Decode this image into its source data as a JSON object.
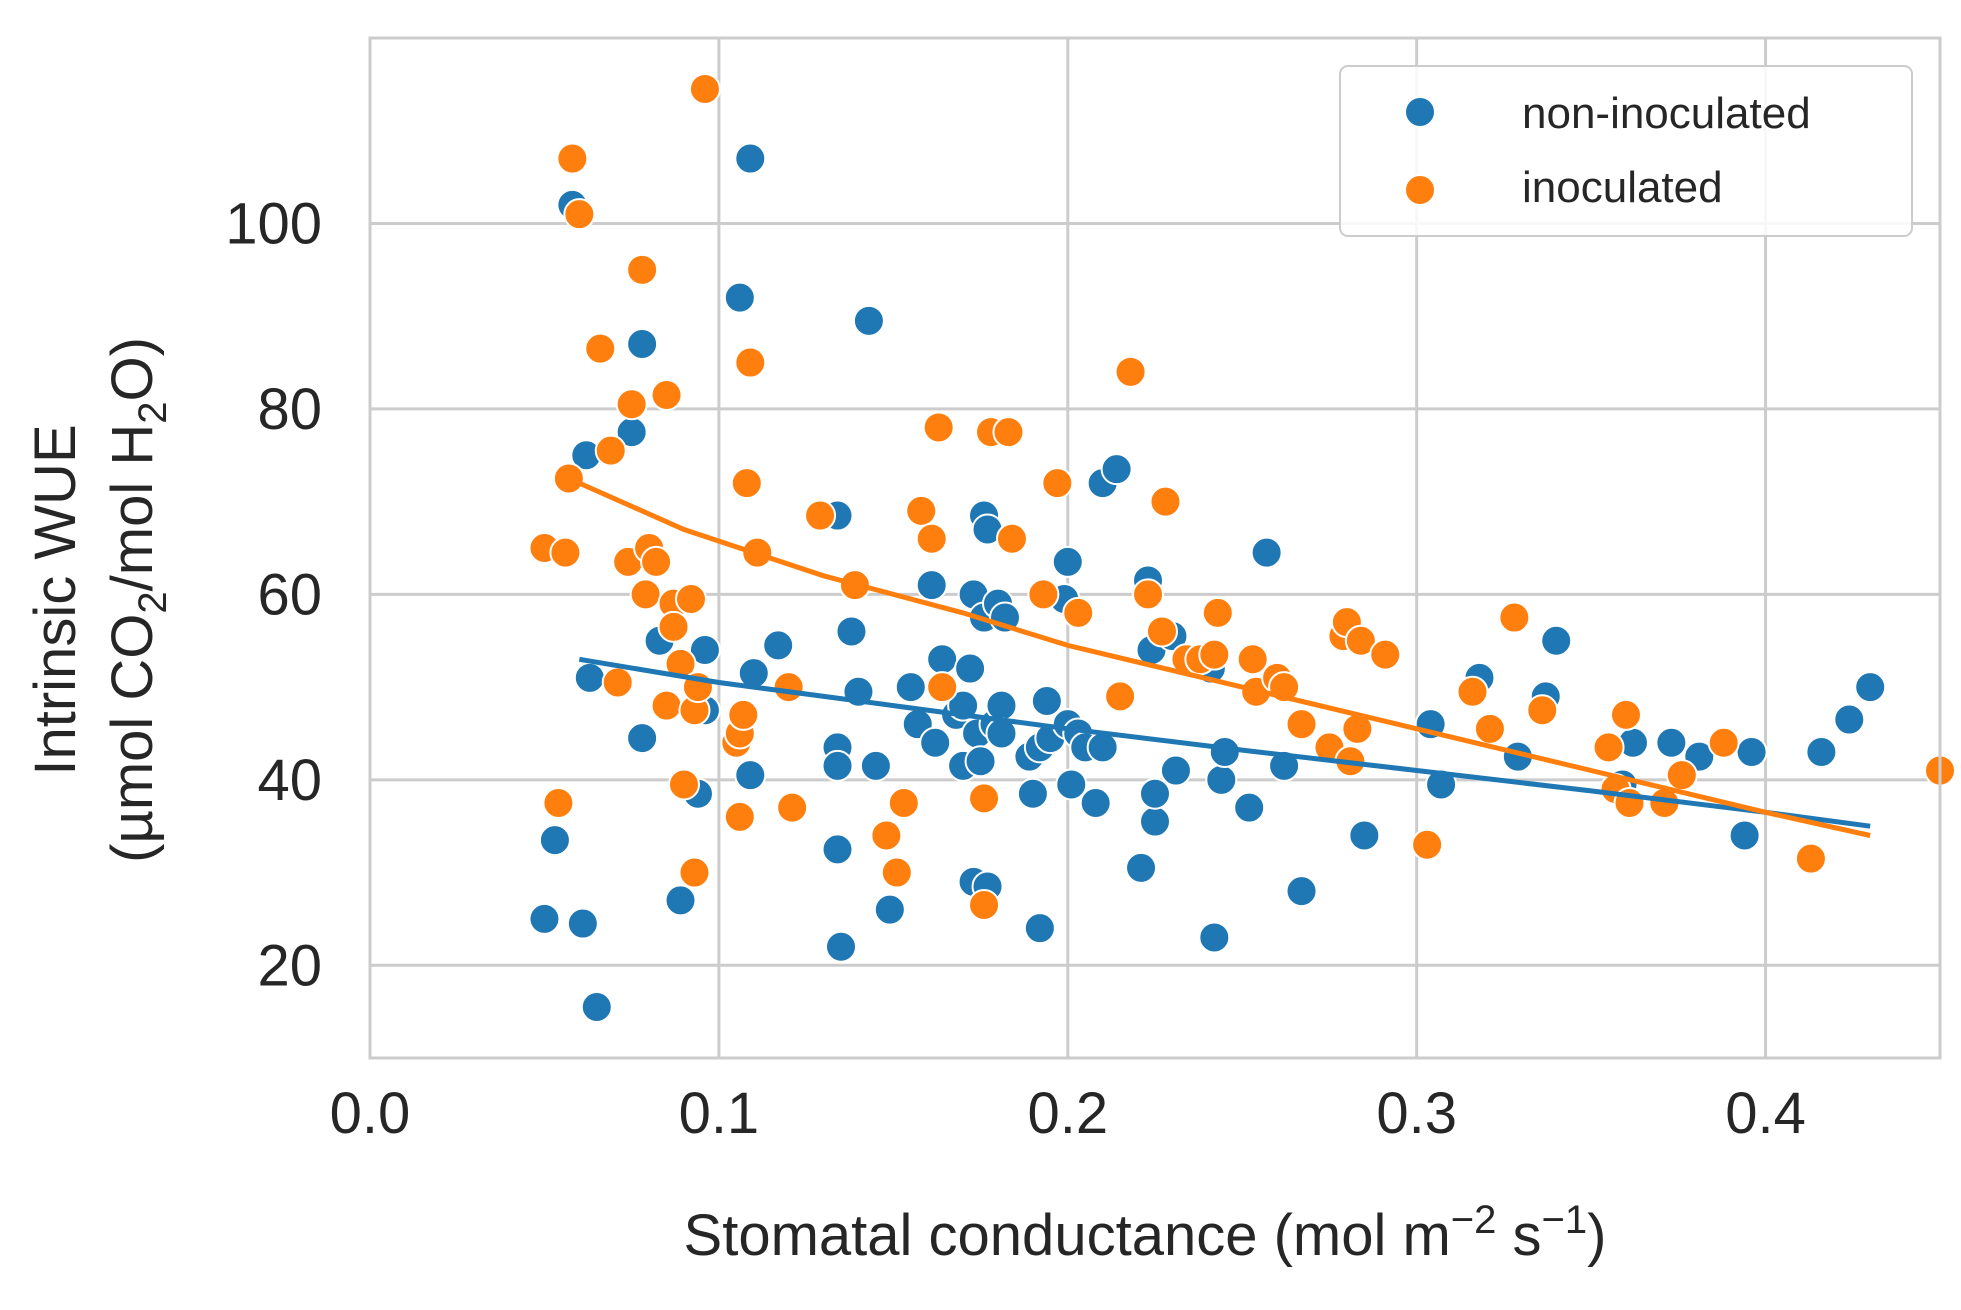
{
  "chart_data": {
    "type": "scatter",
    "xlabel": {
      "main": "Stomatal conductance (mol m",
      "sup1": "−2",
      "mid": " s",
      "sup2": "−1",
      "end": ")"
    },
    "ylabel": {
      "line1": "Intrinsic WUE",
      "line2": {
        "p1": "(µmol CO",
        "sub1": "2",
        "p2": "/mol H",
        "sub2": "2",
        "p3": "O)"
      }
    },
    "xlim": [
      0.0,
      0.45
    ],
    "ylim": [
      10,
      120
    ],
    "xticks": [
      0.0,
      0.1,
      0.2,
      0.3,
      0.4
    ],
    "xtick_labels": [
      "0.0",
      "0.1",
      "0.2",
      "0.3",
      "0.4"
    ],
    "yticks": [
      20,
      40,
      60,
      80,
      100
    ],
    "ytick_labels": [
      "20",
      "40",
      "60",
      "80",
      "100"
    ],
    "grid": true,
    "legend_position": "top-right",
    "series": [
      {
        "name": "non-inoculated",
        "color": "#1f77b4",
        "points": [
          [
            0.058,
            102
          ],
          [
            0.062,
            75
          ],
          [
            0.063,
            51
          ],
          [
            0.053,
            33.5
          ],
          [
            0.05,
            25
          ],
          [
            0.061,
            24.5
          ],
          [
            0.065,
            15.5
          ],
          [
            0.075,
            77.5
          ],
          [
            0.078,
            87
          ],
          [
            0.078,
            44.5
          ],
          [
            0.083,
            55
          ],
          [
            0.089,
            27
          ],
          [
            0.094,
            38.5
          ],
          [
            0.096,
            47.5
          ],
          [
            0.096,
            54
          ],
          [
            0.106,
            92
          ],
          [
            0.109,
            107
          ],
          [
            0.109,
            40.5
          ],
          [
            0.11,
            51.5
          ],
          [
            0.117,
            54.5
          ],
          [
            0.134,
            68.5
          ],
          [
            0.134,
            43.5
          ],
          [
            0.134,
            41.5
          ],
          [
            0.134,
            32.5
          ],
          [
            0.135,
            22
          ],
          [
            0.138,
            56
          ],
          [
            0.14,
            49.5
          ],
          [
            0.143,
            89.5
          ],
          [
            0.145,
            41.5
          ],
          [
            0.149,
            26
          ],
          [
            0.155,
            50
          ],
          [
            0.157,
            46
          ],
          [
            0.161,
            61
          ],
          [
            0.162,
            44
          ],
          [
            0.164,
            53
          ],
          [
            0.168,
            47
          ],
          [
            0.17,
            48
          ],
          [
            0.17,
            41.5
          ],
          [
            0.172,
            52
          ],
          [
            0.173,
            60
          ],
          [
            0.173,
            29
          ],
          [
            0.174,
            45
          ],
          [
            0.175,
            42
          ],
          [
            0.176,
            57.5
          ],
          [
            0.176,
            68.5
          ],
          [
            0.177,
            67
          ],
          [
            0.177,
            28.5
          ],
          [
            0.179,
            46
          ],
          [
            0.18,
            59
          ],
          [
            0.181,
            48
          ],
          [
            0.181,
            45
          ],
          [
            0.182,
            57.5
          ],
          [
            0.189,
            42.5
          ],
          [
            0.19,
            38.5
          ],
          [
            0.192,
            24
          ],
          [
            0.192,
            43.5
          ],
          [
            0.194,
            48.5
          ],
          [
            0.195,
            44.5
          ],
          [
            0.199,
            59.5
          ],
          [
            0.2,
            63.5
          ],
          [
            0.2,
            46
          ],
          [
            0.201,
            39.5
          ],
          [
            0.203,
            45
          ],
          [
            0.205,
            43.5
          ],
          [
            0.208,
            37.5
          ],
          [
            0.21,
            43.5
          ],
          [
            0.21,
            72
          ],
          [
            0.214,
            73.5
          ],
          [
            0.221,
            30.5
          ],
          [
            0.223,
            61.5
          ],
          [
            0.224,
            54
          ],
          [
            0.225,
            35.5
          ],
          [
            0.225,
            38.5
          ],
          [
            0.23,
            55.5
          ],
          [
            0.231,
            41
          ],
          [
            0.241,
            52
          ],
          [
            0.242,
            23
          ],
          [
            0.244,
            40
          ],
          [
            0.245,
            43
          ],
          [
            0.252,
            37
          ],
          [
            0.257,
            64.5
          ],
          [
            0.262,
            41.5
          ],
          [
            0.267,
            28
          ],
          [
            0.285,
            34
          ],
          [
            0.304,
            46
          ],
          [
            0.307,
            39.5
          ],
          [
            0.318,
            51
          ],
          [
            0.329,
            42.5
          ],
          [
            0.337,
            49
          ],
          [
            0.34,
            55
          ],
          [
            0.359,
            39.5
          ],
          [
            0.362,
            44
          ],
          [
            0.373,
            44
          ],
          [
            0.381,
            42.5
          ],
          [
            0.394,
            34
          ],
          [
            0.396,
            43
          ],
          [
            0.416,
            43
          ],
          [
            0.424,
            46.5
          ],
          [
            0.43,
            50
          ]
        ],
        "trend": [
          [
            0.06,
            53
          ],
          [
            0.1,
            50.5
          ],
          [
            0.15,
            48
          ],
          [
            0.2,
            45.5
          ],
          [
            0.25,
            43.2
          ],
          [
            0.3,
            41
          ],
          [
            0.35,
            38.8
          ],
          [
            0.4,
            36.5
          ],
          [
            0.43,
            35
          ]
        ]
      },
      {
        "name": "inoculated",
        "color": "#ff7f0e",
        "points": [
          [
            0.057,
            72.5
          ],
          [
            0.058,
            107
          ],
          [
            0.06,
            101
          ],
          [
            0.05,
            65
          ],
          [
            0.056,
            64.5
          ],
          [
            0.054,
            37.5
          ],
          [
            0.066,
            86.5
          ],
          [
            0.069,
            75.5
          ],
          [
            0.071,
            50.5
          ],
          [
            0.074,
            63.5
          ],
          [
            0.075,
            80.5
          ],
          [
            0.078,
            95
          ],
          [
            0.079,
            60
          ],
          [
            0.08,
            65
          ],
          [
            0.082,
            63.5
          ],
          [
            0.085,
            81.5
          ],
          [
            0.087,
            59
          ],
          [
            0.087,
            56.5
          ],
          [
            0.085,
            48
          ],
          [
            0.089,
            52.5
          ],
          [
            0.09,
            39.5
          ],
          [
            0.092,
            59.5
          ],
          [
            0.093,
            47.5
          ],
          [
            0.094,
            50
          ],
          [
            0.093,
            30
          ],
          [
            0.096,
            114.5
          ],
          [
            0.105,
            44
          ],
          [
            0.106,
            45
          ],
          [
            0.106,
            36
          ],
          [
            0.107,
            47
          ],
          [
            0.108,
            72
          ],
          [
            0.109,
            85
          ],
          [
            0.111,
            64.5
          ],
          [
            0.12,
            50
          ],
          [
            0.121,
            37
          ],
          [
            0.129,
            68.5
          ],
          [
            0.139,
            61
          ],
          [
            0.148,
            34
          ],
          [
            0.151,
            30
          ],
          [
            0.153,
            37.5
          ],
          [
            0.158,
            69
          ],
          [
            0.161,
            66
          ],
          [
            0.163,
            78
          ],
          [
            0.164,
            50
          ],
          [
            0.176,
            38
          ],
          [
            0.176,
            26.5
          ],
          [
            0.178,
            77.5
          ],
          [
            0.183,
            77.5
          ],
          [
            0.184,
            66
          ],
          [
            0.193,
            60
          ],
          [
            0.197,
            72
          ],
          [
            0.203,
            58
          ],
          [
            0.215,
            49
          ],
          [
            0.218,
            84
          ],
          [
            0.223,
            60
          ],
          [
            0.227,
            56
          ],
          [
            0.228,
            70
          ],
          [
            0.234,
            53
          ],
          [
            0.238,
            53
          ],
          [
            0.242,
            53.5
          ],
          [
            0.243,
            58
          ],
          [
            0.253,
            53
          ],
          [
            0.254,
            49.5
          ],
          [
            0.26,
            51
          ],
          [
            0.262,
            50
          ],
          [
            0.267,
            46
          ],
          [
            0.275,
            43.5
          ],
          [
            0.279,
            55.5
          ],
          [
            0.28,
            57
          ],
          [
            0.281,
            42
          ],
          [
            0.283,
            45.5
          ],
          [
            0.284,
            55
          ],
          [
            0.291,
            53.5
          ],
          [
            0.303,
            33
          ],
          [
            0.316,
            49.5
          ],
          [
            0.321,
            45.5
          ],
          [
            0.328,
            57.5
          ],
          [
            0.336,
            47.5
          ],
          [
            0.355,
            43.5
          ],
          [
            0.357,
            39
          ],
          [
            0.36,
            47
          ],
          [
            0.361,
            37.5
          ],
          [
            0.371,
            37.5
          ],
          [
            0.376,
            40.5
          ],
          [
            0.388,
            44
          ],
          [
            0.413,
            31.5
          ],
          [
            0.45,
            41
          ]
        ],
        "trend": [
          [
            0.06,
            72
          ],
          [
            0.09,
            67
          ],
          [
            0.13,
            62
          ],
          [
            0.17,
            58
          ],
          [
            0.2,
            54.5
          ],
          [
            0.25,
            50
          ],
          [
            0.3,
            45.5
          ],
          [
            0.35,
            41
          ],
          [
            0.4,
            36.5
          ],
          [
            0.43,
            34
          ]
        ]
      }
    ]
  }
}
